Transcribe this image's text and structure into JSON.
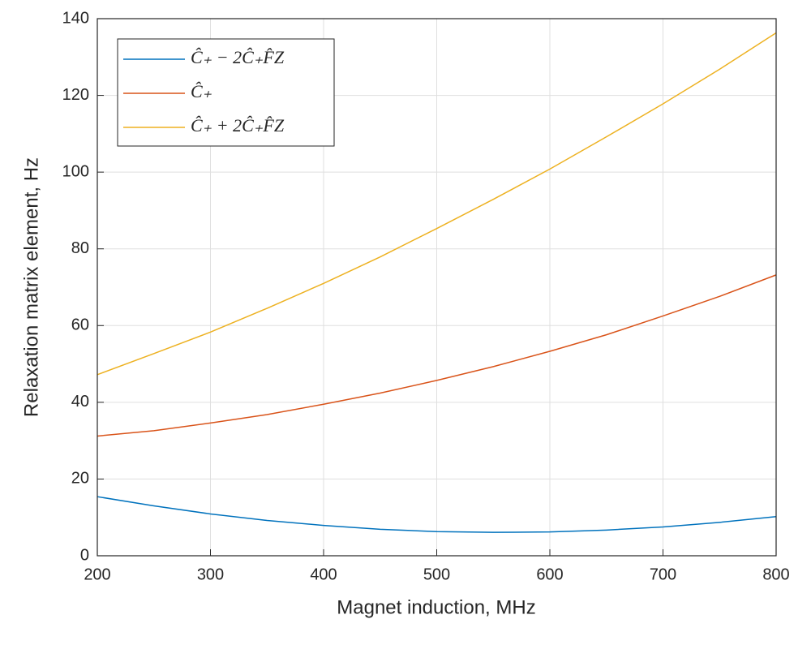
{
  "chart_data": {
    "type": "line",
    "xlabel": "Magnet induction, MHz",
    "ylabel": "Relaxation matrix element, Hz",
    "x": [
      200,
      250,
      300,
      350,
      400,
      450,
      500,
      550,
      600,
      650,
      700,
      750,
      800
    ],
    "series": [
      {
        "name": "Ĉ₊ − 2Ĉ₊F̂Z",
        "color": "#0072bd",
        "values": [
          15.4,
          13.0,
          10.9,
          9.2,
          7.9,
          6.9,
          6.3,
          6.1,
          6.2,
          6.7,
          7.5,
          8.7,
          10.2
        ]
      },
      {
        "name": "Ĉ₊",
        "color": "#d95319",
        "values": [
          31.2,
          32.6,
          34.6,
          36.8,
          39.5,
          42.4,
          45.7,
          49.3,
          53.3,
          57.6,
          62.5,
          67.6,
          73.2
        ]
      },
      {
        "name": "Ĉ₊ + 2Ĉ₊F̂Z",
        "color": "#edb120",
        "values": [
          47.2,
          52.7,
          58.3,
          64.5,
          71.0,
          77.9,
          85.3,
          92.9,
          100.8,
          109.2,
          117.8,
          126.8,
          136.3
        ]
      }
    ],
    "xlim": [
      200,
      800
    ],
    "xticks": [
      200,
      300,
      400,
      500,
      600,
      700,
      800
    ],
    "ylim": [
      0,
      140
    ],
    "yticks": [
      0,
      20,
      40,
      60,
      80,
      100,
      120,
      140
    ],
    "grid": true,
    "legend": "top-left"
  }
}
